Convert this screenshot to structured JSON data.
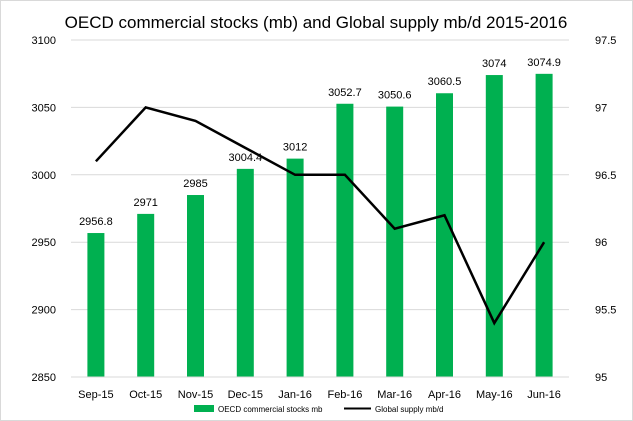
{
  "chart_data": {
    "type": "bar",
    "title": "OECD commercial stocks (mb) and Global supply mb/d 2015-2016",
    "categories": [
      "Sep-15",
      "Oct-15",
      "Nov-15",
      "Dec-15",
      "Jan-16",
      "Feb-16",
      "Mar-16",
      "Apr-16",
      "May-16",
      "Jun-16"
    ],
    "series": [
      {
        "name": "OECD commercial stocks mb",
        "type": "bar",
        "axis": "left",
        "color": "#00b050",
        "values": [
          2956.8,
          2971,
          2985,
          3004.4,
          3012,
          3052.7,
          3050.6,
          3060.5,
          3074,
          3074.9
        ],
        "labels": [
          "2956.8",
          "2971",
          "2985",
          "3004.4",
          "3012",
          "3052.7",
          "3050.6",
          "3060.5",
          "3074",
          "3074.9"
        ]
      },
      {
        "name": "Global supply mb/d",
        "type": "line",
        "axis": "right",
        "color": "#000000",
        "values": [
          96.6,
          97.0,
          96.9,
          96.7,
          96.5,
          96.5,
          96.1,
          96.2,
          95.4,
          96.0
        ]
      }
    ],
    "y_left": {
      "ylim": [
        2850,
        3100
      ],
      "ticks": [
        "3100",
        "3050",
        "3000",
        "2950",
        "2900",
        "2850"
      ],
      "values": [
        3100,
        3050,
        3000,
        2950,
        2900,
        2850
      ]
    },
    "y_right": {
      "ylim": [
        95,
        97.5
      ],
      "ticks": [
        "97.5",
        "97",
        "96.5",
        "96",
        "95.5",
        "95"
      ],
      "values": [
        97.5,
        97,
        96.5,
        96,
        95.5,
        95
      ]
    },
    "grid": true,
    "legend": "bottom"
  }
}
